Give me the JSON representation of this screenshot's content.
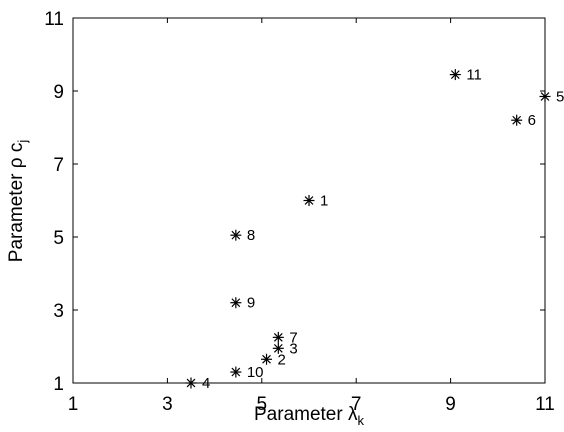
{
  "chart_data": {
    "type": "scatter",
    "title": "",
    "xlabel": {
      "main": "Parameter ",
      "symbol": "λ",
      "subscript": "k"
    },
    "ylabel": {
      "main": "Parameter ",
      "symbol": "ρ",
      "tail": " c",
      "subscript": "j"
    },
    "xlim": [
      1,
      11
    ],
    "ylim": [
      1,
      11
    ],
    "xticks": [
      1,
      3,
      5,
      7,
      9,
      11
    ],
    "yticks": [
      1,
      3,
      5,
      7,
      9,
      11
    ],
    "xtick_labels": [
      "1",
      "3",
      "5",
      "7",
      "9",
      "11"
    ],
    "ytick_labels": [
      "1",
      "3",
      "5",
      "7",
      "9",
      "11"
    ],
    "grid": false,
    "marker": "asterisk",
    "marker_color": "#000000",
    "points": [
      {
        "label": "1",
        "x": 6.0,
        "y": 6.0
      },
      {
        "label": "2",
        "x": 5.1,
        "y": 1.65
      },
      {
        "label": "3",
        "x": 5.35,
        "y": 1.95
      },
      {
        "label": "4",
        "x": 3.5,
        "y": 1.0
      },
      {
        "label": "5",
        "x": 11.0,
        "y": 8.85
      },
      {
        "label": "6",
        "x": 10.4,
        "y": 8.2
      },
      {
        "label": "7",
        "x": 5.35,
        "y": 2.25
      },
      {
        "label": "8",
        "x": 4.45,
        "y": 5.05
      },
      {
        "label": "9",
        "x": 4.45,
        "y": 3.2
      },
      {
        "label": "10",
        "x": 4.45,
        "y": 1.3
      },
      {
        "label": "11",
        "x": 9.1,
        "y": 9.45
      }
    ]
  }
}
